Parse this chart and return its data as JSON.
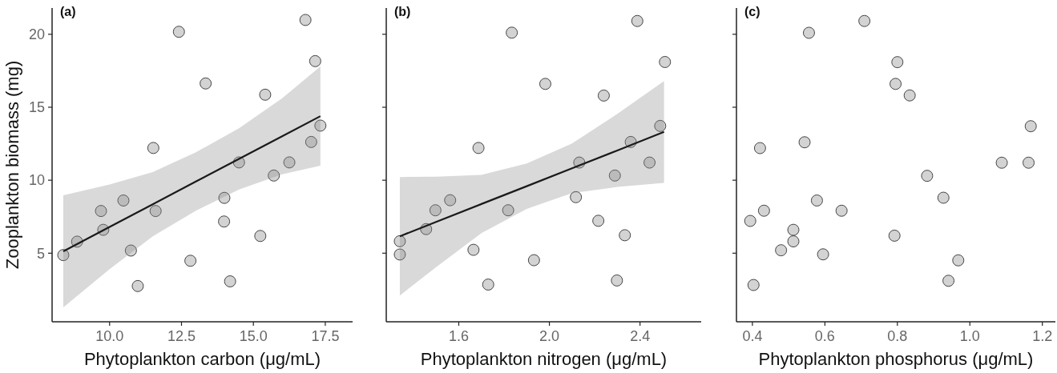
{
  "chart_data": [
    {
      "type": "scatter",
      "title": "(a)",
      "xlabel": "Phytoplankton carbon (μg/mL)",
      "ylabel": "Zooplankton biomass (mg)",
      "xlim": [
        8.0,
        18.45
      ],
      "ylim": [
        0.3,
        21.8
      ],
      "xticks": [
        {
          "value": 10,
          "label": "10.0"
        },
        12.5,
        {
          "value": 15,
          "label": "15.0"
        },
        17.5
      ],
      "yticks": [
        5,
        10,
        15,
        20
      ],
      "marker": "circle",
      "series": [
        {
          "color": "#d3d3d3",
          "x": [
            8.39,
            8.87,
            9.7,
            9.78,
            10.48,
            10.74,
            10.98,
            11.52,
            11.6,
            12.41,
            12.81,
            13.34,
            13.99,
            13.98,
            14.19,
            14.5,
            15.24,
            15.41,
            15.71,
            16.25,
            16.81,
            17.01,
            17.15,
            17.33
          ],
          "values": [
            4.87,
            5.79,
            7.89,
            6.6,
            8.61,
            5.18,
            2.75,
            12.21,
            7.89,
            20.17,
            4.48,
            16.63,
            8.79,
            7.17,
            3.07,
            11.22,
            6.18,
            15.86,
            10.32,
            11.22,
            20.98,
            12.62,
            18.16,
            13.74
          ]
        },
        {
          "type": "line",
          "marker": "none",
          "color": "#1a1a1a",
          "x": [
            8.39,
            10,
            11.5,
            13,
            14.5,
            16,
            17.33
          ],
          "values": [
            5.13,
            6.8,
            8.35,
            9.91,
            11.46,
            13.01,
            14.39
          ],
          "lower": [
            1.29,
            3.9,
            6.15,
            7.91,
            9.36,
            10.41,
            10.99
          ],
          "upper": [
            8.97,
            9.7,
            10.55,
            11.91,
            13.56,
            15.61,
            17.79
          ]
        }
      ]
    },
    {
      "type": "scatter",
      "title": "(b)",
      "xlabel": "Phytoplankton nitrogen (μg/mL)",
      "xlim": [
        1.28,
        2.67
      ],
      "ylim": [
        0.3,
        21.8
      ],
      "xticks": [
        1.6,
        {
          "value": 2,
          "label": "2.0"
        },
        2.4
      ],
      "yticks": [
        5,
        10,
        15,
        20
      ],
      "tick_labels": "x",
      "marker": "circle",
      "series": [
        {
          "color": "#d3d3d3",
          "x": [
            1.34,
            1.34,
            1.456,
            1.497,
            1.562,
            1.665,
            1.687,
            1.73,
            1.818,
            1.834,
            1.932,
            1.982,
            2.117,
            2.132,
            2.216,
            2.24,
            2.289,
            2.298,
            2.333,
            2.359,
            2.388,
            2.442,
            2.489,
            2.51
          ],
          "values": [
            5.82,
            4.91,
            6.65,
            7.94,
            8.63,
            5.23,
            12.21,
            2.85,
            7.94,
            20.11,
            4.52,
            16.6,
            8.84,
            11.21,
            7.22,
            15.8,
            10.32,
            3.13,
            6.23,
            12.62,
            20.91,
            11.21,
            13.72,
            18.1
          ]
        },
        {
          "type": "line",
          "marker": "none",
          "color": "#1a1a1a",
          "x": [
            1.34,
            1.5,
            1.7,
            1.9,
            2.1,
            2.3,
            2.506
          ],
          "values": [
            6.16,
            7.14,
            8.37,
            9.59,
            10.82,
            12.04,
            13.31
          ],
          "lower": [
            2.1,
            4.04,
            6.37,
            8.04,
            9.12,
            9.54,
            9.82
          ],
          "upper": [
            10.22,
            10.24,
            10.37,
            11.14,
            12.52,
            14.54,
            16.8
          ]
        }
      ]
    },
    {
      "type": "scatter",
      "title": "(c)",
      "xlabel": "Phytoplankton phosphorus (μg/mL)",
      "xlim": [
        0.356,
        1.236
      ],
      "ylim": [
        0.3,
        21.8
      ],
      "xticks": [
        0.4,
        0.6,
        0.8,
        {
          "value": 1,
          "label": "1.0"
        },
        1.2
      ],
      "yticks": [
        5,
        10,
        15,
        20
      ],
      "tick_labels": "x",
      "marker": "circle",
      "series": [
        {
          "color": "#d3d3d3",
          "x": [
            0.394,
            0.403,
            0.421,
            0.432,
            0.479,
            0.513,
            0.513,
            0.544,
            0.556,
            0.578,
            0.595,
            0.646,
            0.709,
            0.792,
            0.795,
            0.8,
            0.834,
            0.882,
            0.927,
            0.941,
            0.968,
            1.088,
            1.162,
            1.168
          ],
          "values": [
            7.21,
            2.82,
            12.2,
            7.91,
            5.2,
            6.6,
            5.81,
            12.6,
            20.1,
            8.61,
            4.92,
            7.91,
            20.91,
            6.2,
            16.6,
            18.09,
            15.81,
            10.3,
            8.8,
            3.11,
            4.51,
            11.2,
            11.2,
            13.7
          ]
        }
      ]
    }
  ]
}
